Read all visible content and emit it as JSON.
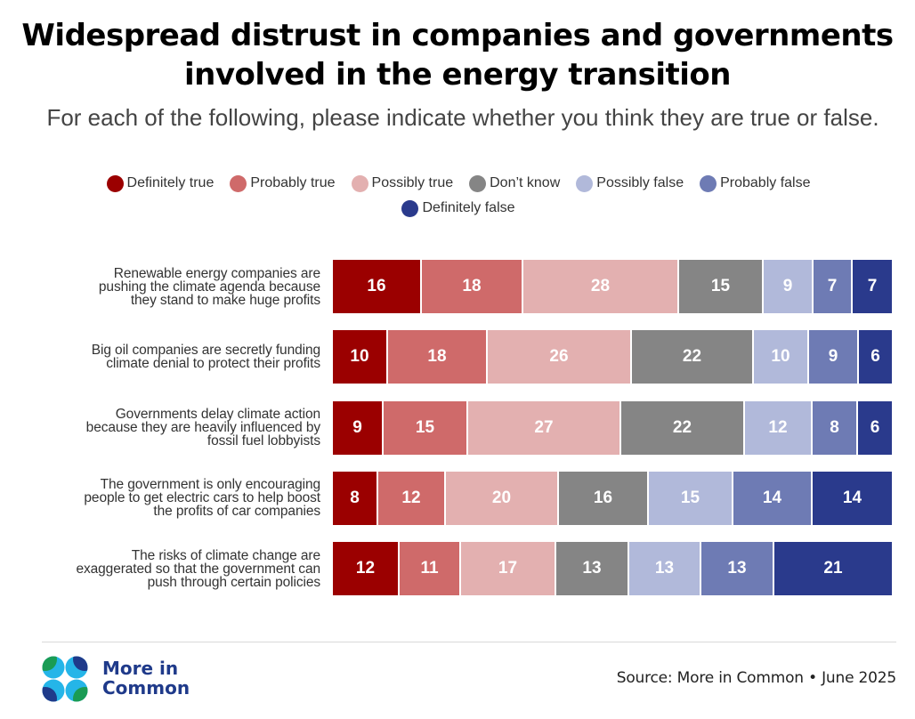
{
  "chart_data": {
    "type": "bar",
    "orientation": "horizontal",
    "stacked": true,
    "normalized_to_percent": true,
    "title": "Widespread distrust in companies and governments involved in the energy transition",
    "subtitle": "For each of the following, please indicate whether you think they are true or false.",
    "xlabel": "",
    "ylabel": "",
    "xlim": [
      0,
      100
    ],
    "grid": false,
    "legend_position": "top-center",
    "categories": [
      "Renewable energy companies are pushing the climate agenda because they stand to make huge profits",
      "Big oil companies are secretly funding climate denial to protect their profits",
      "Governments delay climate action because they are heavily influenced by fossil fuel lobbyists",
      "The government is only encouraging people to get electric cars to help boost the profits of car companies",
      "The risks of climate change are exaggerated so that the government can push through certain policies"
    ],
    "category_lines": [
      [
        "Renewable energy companies are",
        "pushing the climate agenda because",
        "they stand to make huge profits"
      ],
      [
        "Big oil companies are secretly funding",
        "climate denial to protect their profits"
      ],
      [
        "Governments delay climate action",
        "because they are heavily influenced by",
        "fossil fuel lobbyists"
      ],
      [
        "The government is only encouraging",
        "people to get electric cars to help boost",
        "the profits of car companies"
      ],
      [
        "The risks of climate change are",
        "exaggerated so that the government can",
        "push through certain policies"
      ]
    ],
    "series": [
      {
        "name": "Definitely true",
        "color": "#9b0000",
        "values": [
          16,
          10,
          9,
          8,
          12
        ]
      },
      {
        "name": "Probably true",
        "color": "#cf6a6a",
        "values": [
          18,
          18,
          15,
          12,
          11
        ]
      },
      {
        "name": "Possibly true",
        "color": "#e3b0b0",
        "values": [
          28,
          26,
          27,
          20,
          17
        ]
      },
      {
        "name": "Don’t know",
        "color": "#858585",
        "values": [
          15,
          22,
          22,
          16,
          13
        ]
      },
      {
        "name": "Possibly false",
        "color": "#b1b9da",
        "values": [
          9,
          10,
          12,
          15,
          13
        ]
      },
      {
        "name": "Probably false",
        "color": "#6e7bb4",
        "values": [
          7,
          9,
          8,
          14,
          13
        ]
      },
      {
        "name": "Definitely false",
        "color": "#2a3a8c",
        "values": [
          7,
          6,
          6,
          14,
          21
        ]
      }
    ]
  },
  "footer": {
    "brand_line1": "More in",
    "brand_line2": "Common",
    "source": "Source: More in Common • June 2025",
    "brand_color": "#1f3a8a",
    "logo_colors": {
      "blue": "#1f3a8a",
      "light_blue": "#25b5e8",
      "green": "#1a9c55"
    }
  }
}
